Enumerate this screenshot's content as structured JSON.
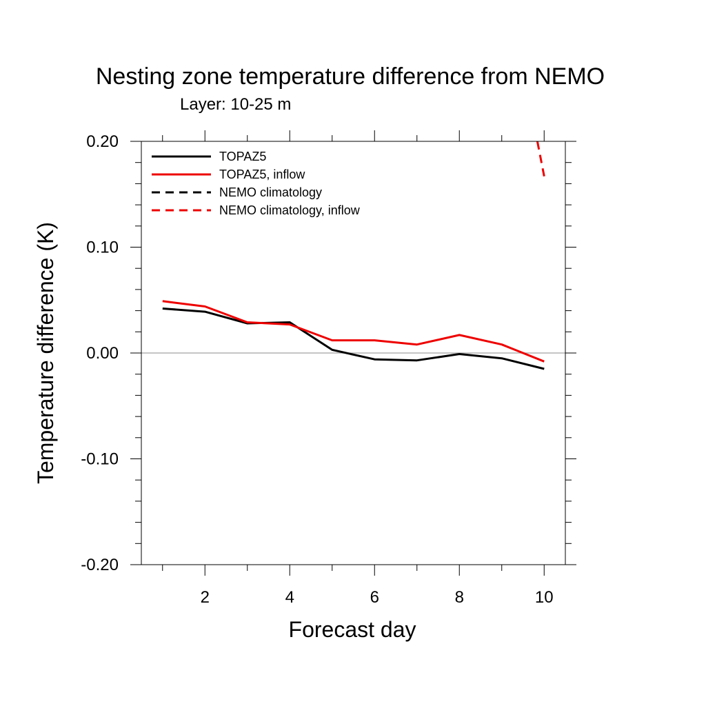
{
  "chart_data": {
    "type": "line",
    "title": "Nesting zone temperature difference from NEMO",
    "subtitle": "Layer: 10-25 m",
    "xlabel": "Forecast day",
    "ylabel": "Temperature difference (K)",
    "xlim": [
      0.5,
      10.5
    ],
    "ylim": [
      -0.2,
      0.2
    ],
    "x_ticks": [
      {
        "value": 2,
        "label": "2"
      },
      {
        "value": 4,
        "label": "4"
      },
      {
        "value": 6,
        "label": "6"
      },
      {
        "value": 8,
        "label": "8"
      },
      {
        "value": 10,
        "label": "10"
      }
    ],
    "y_ticks": [
      {
        "value": 0.2,
        "label": "0.20"
      },
      {
        "value": 0.1,
        "label": "0.10"
      },
      {
        "value": 0.0,
        "label": "0.00"
      },
      {
        "value": -0.1,
        "label": "-0.10"
      },
      {
        "value": -0.2,
        "label": "-0.20"
      }
    ],
    "zero_line": true,
    "legend_position": "top-left",
    "series": [
      {
        "name": "TOPAZ5",
        "color": "#000000",
        "dash": "solid",
        "x": [
          1,
          2,
          3,
          4,
          5,
          6,
          7,
          8,
          9,
          10
        ],
        "y": [
          0.042,
          0.039,
          0.028,
          0.029,
          0.003,
          -0.006,
          -0.007,
          -0.001,
          -0.005,
          -0.015
        ]
      },
      {
        "name": "TOPAZ5, inflow",
        "color": "#ee0000",
        "dash": "solid",
        "x": [
          1,
          2,
          3,
          4,
          5,
          6,
          7,
          8,
          9,
          10
        ],
        "y": [
          0.049,
          0.044,
          0.029,
          0.027,
          0.012,
          0.012,
          0.008,
          0.017,
          0.008,
          -0.008
        ]
      },
      {
        "name": "NEMO climatology",
        "color": "#000000",
        "dash": "dashed",
        "x": [],
        "y": []
      },
      {
        "name": "NEMO climatology, inflow",
        "color": "#ee0000",
        "dash": "dashed",
        "x": [
          9.84,
          10
        ],
        "y": [
          0.2,
          0.167
        ]
      }
    ]
  }
}
